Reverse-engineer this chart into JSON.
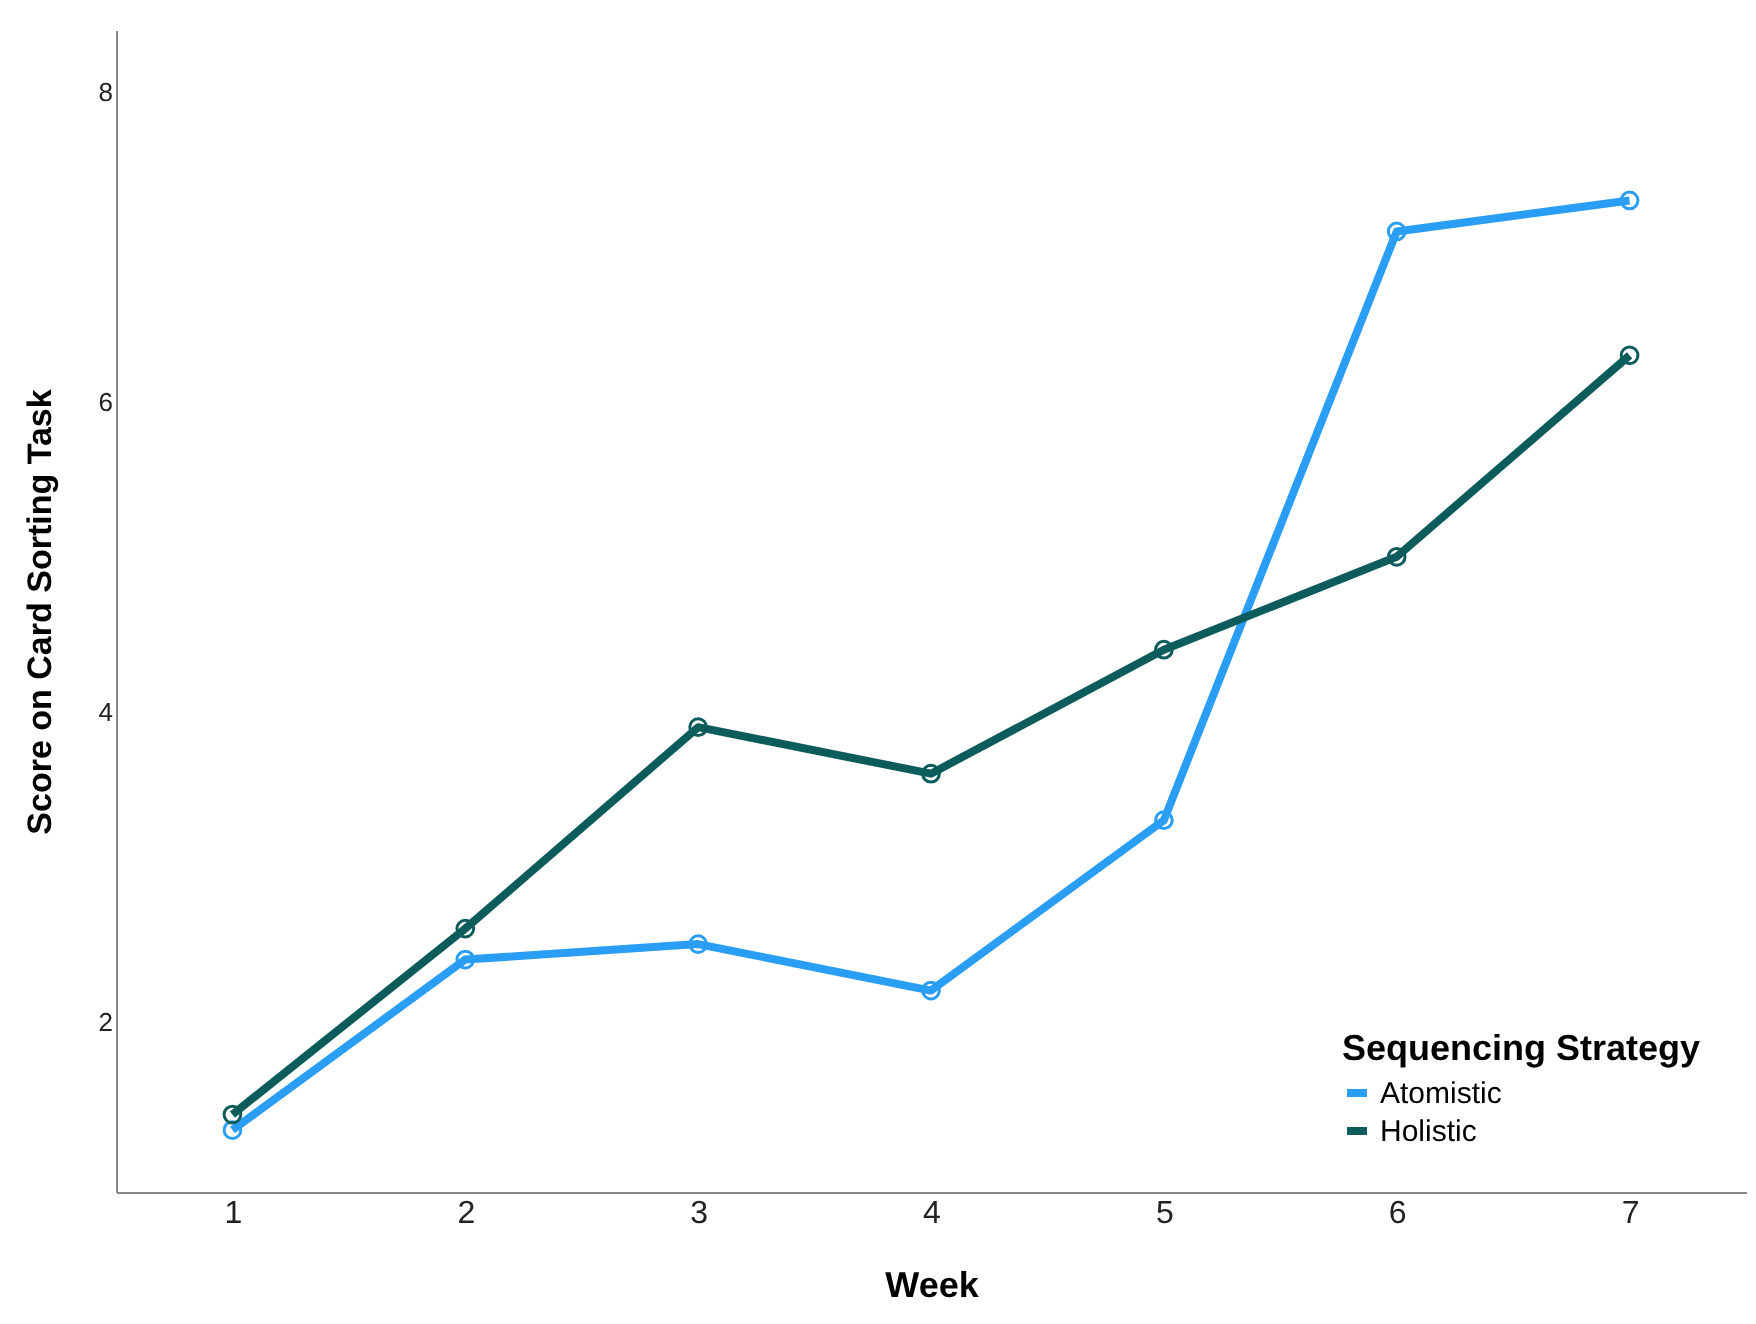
{
  "chart_data": {
    "type": "line",
    "xlabel": "Week",
    "ylabel": "Score on Card Sorting Task",
    "legend_title": "Sequencing Strategy",
    "categories": [
      "1",
      "2",
      "3",
      "4",
      "5",
      "6",
      "7"
    ],
    "series": [
      {
        "name": "Atomistic",
        "color": "#2a9df4",
        "values": [
          1.3,
          2.4,
          2.5,
          2.2,
          3.3,
          7.1,
          7.3
        ]
      },
      {
        "name": "Holistic",
        "color": "#0d5c5c",
        "values": [
          1.4,
          2.6,
          3.9,
          3.6,
          4.4,
          5.0,
          6.3
        ]
      }
    ],
    "ylim": [
      0.9,
      8.4
    ],
    "yticks": [
      2,
      4,
      6,
      8
    ],
    "grid": false,
    "legend": "bottom right",
    "marker": "circle",
    "line_style": "solid"
  }
}
